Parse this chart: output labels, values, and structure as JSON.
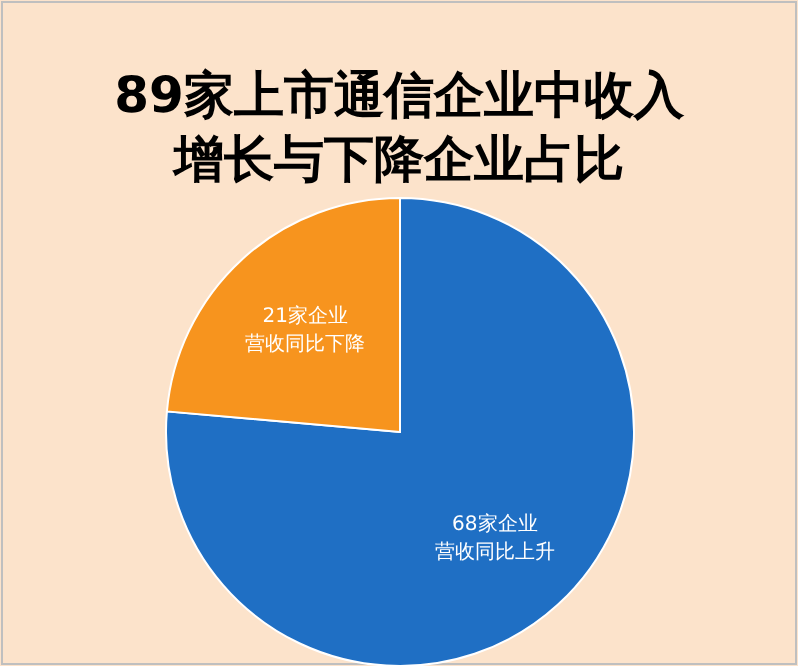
{
  "chart_data": {
    "type": "pie",
    "title": "89家上市通信企业中收入增长与下降企业占比",
    "categories": [
      "68家企业营收同比上升",
      "21家企业营收同比下降"
    ],
    "values": [
      68,
      21
    ],
    "colors": [
      "#1f6fc4",
      "#f7941e"
    ]
  }
}
